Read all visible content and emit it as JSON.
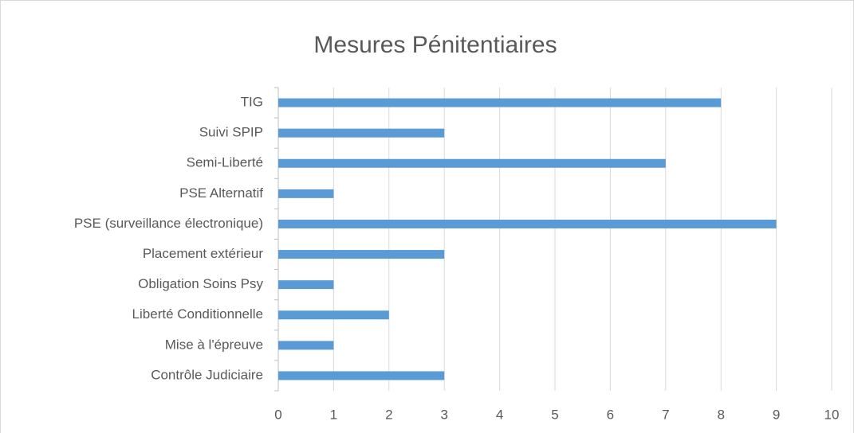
{
  "chart_data": {
    "type": "bar",
    "orientation": "horizontal",
    "title": "Mesures Pénitentiaires",
    "categories": [
      "TIG",
      "Suivi SPIP",
      "Semi-Liberté",
      "PSE Alternatif",
      "PSE (surveillance électronique)",
      "Placement extérieur",
      "Obligation Soins Psy",
      "Liberté Conditionnelle",
      "Mise à l'épreuve",
      "Contrôle Judiciaire"
    ],
    "values": [
      8,
      3,
      7,
      1,
      9,
      3,
      1,
      2,
      1,
      3
    ],
    "color": "#5b9bd5",
    "xlim": [
      0,
      10
    ],
    "xticks": [
      0,
      1,
      2,
      3,
      4,
      5,
      6,
      7,
      8,
      9,
      10
    ],
    "grid": true
  }
}
